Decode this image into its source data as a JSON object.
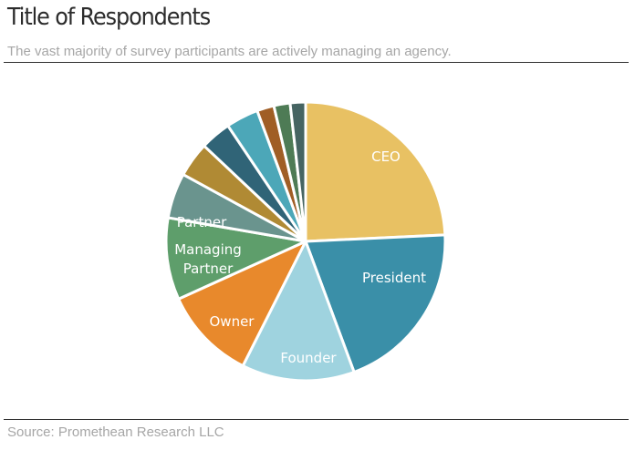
{
  "header": {
    "title": "Title of Respondents",
    "subtitle": "The vast majority of survey participants are actively managing an agency."
  },
  "footer": {
    "source": "Source: Promethean Research LLC"
  },
  "chart_data": {
    "type": "pie",
    "title": "Title of Respondents",
    "subtitle": "The vast majority of survey participants are actively managing an agency.",
    "categories": [
      "CEO",
      "President",
      "Founder",
      "Owner",
      "Managing Partner",
      "Partner",
      "",
      "",
      "",
      "",
      "",
      ""
    ],
    "values": [
      24.5,
      20.3,
      13.2,
      10.9,
      9.6,
      5.3,
      4.1,
      3.6,
      3.8,
      2.0,
      1.9,
      1.8
    ],
    "colors": [
      "#e8c163",
      "#3a8fa8",
      "#9fd3df",
      "#e8892c",
      "#5e9e6b",
      "#6a948e",
      "#b08a34",
      "#306477",
      "#4ca7b8",
      "#a05e25",
      "#4e7b55",
      "#466462"
    ],
    "labels": [
      {
        "text": "CEO"
      },
      {
        "text": "President"
      },
      {
        "text": "Founder"
      },
      {
        "text": "Owner"
      },
      {
        "lines": [
          "Managing",
          "Partner"
        ]
      },
      {
        "text": "Partner"
      }
    ],
    "start_angle_deg": 0,
    "direction": "clockwise",
    "legend": "none"
  }
}
